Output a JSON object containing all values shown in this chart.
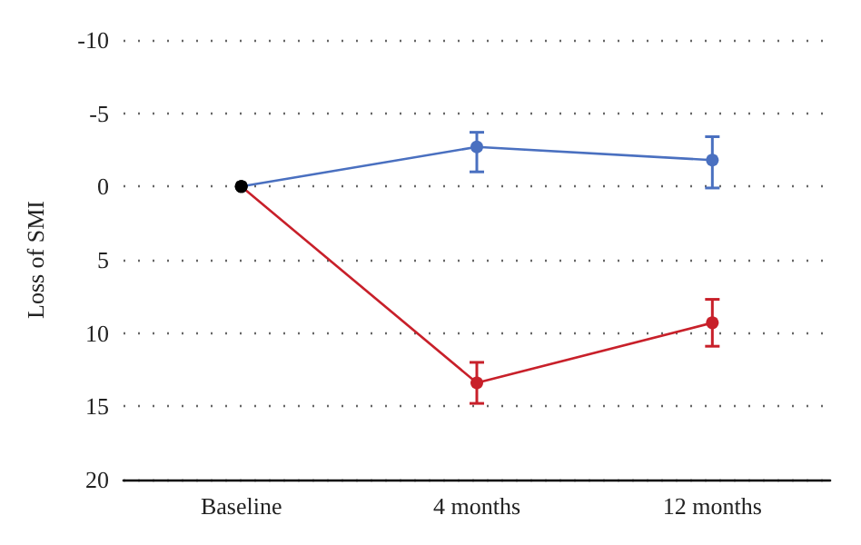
{
  "chart_data": {
    "type": "line",
    "ylabel": "Loss of SMI",
    "categories": [
      "Baseline",
      "4 months",
      "12 months"
    ],
    "series": [
      {
        "color": "#4a70c0",
        "colors": [
          "#000000",
          "#4a70c0",
          "#4a70c0"
        ],
        "values": [
          0,
          -2.7,
          -1.8
        ],
        "errors": [
          null,
          [
            -3.7,
            -1.0
          ],
          [
            -3.4,
            0.1
          ]
        ]
      },
      {
        "color": "#c8202a",
        "colors": [
          "#000000",
          "#c8202a",
          "#c8202a"
        ],
        "values": [
          0,
          13.4,
          9.3
        ],
        "errors": [
          null,
          [
            12.0,
            14.8
          ],
          [
            7.7,
            10.9
          ]
        ]
      }
    ],
    "ylim": [
      20,
      -10
    ],
    "yticks": [
      -10,
      -5,
      0,
      5,
      10,
      15,
      20
    ],
    "grid": "y",
    "marker": "circle",
    "line_style": "solid"
  }
}
